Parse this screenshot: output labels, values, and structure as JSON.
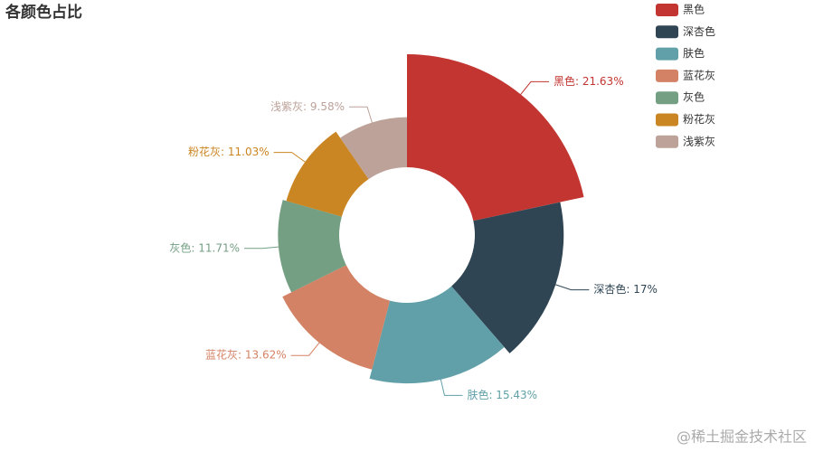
{
  "chart_data": {
    "type": "pie",
    "rose": true,
    "title": "各颜色占比",
    "categories": [
      "黑色",
      "深杏色",
      "肤色",
      "蓝花灰",
      "灰色",
      "粉花灰",
      "浅紫灰"
    ],
    "values": [
      21.63,
      17,
      15.43,
      13.62,
      11.71,
      11.03,
      9.58
    ],
    "value_labels": [
      "黑色: 21.63%",
      "深杏色: 17%",
      "肤色: 15.43%",
      "蓝花灰: 13.62%",
      "灰色: 11.71%",
      "粉花灰: 11.03%",
      "浅紫灰: 9.58%"
    ],
    "colors": [
      "#c23531",
      "#2f4554",
      "#61a0a8",
      "#d48265",
      "#749f83",
      "#ca8622",
      "#bda29a"
    ],
    "legend": "top-right",
    "watermark": "@稀土掘金技术社区"
  }
}
